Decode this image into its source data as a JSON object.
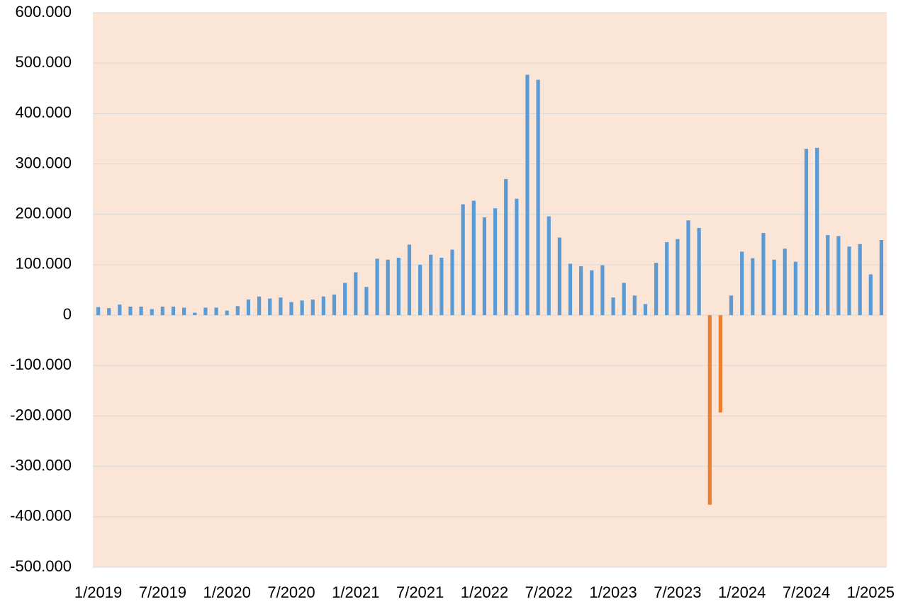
{
  "chart_data": {
    "type": "bar",
    "categories": [
      "1/2019",
      null,
      null,
      null,
      null,
      null,
      "7/2019",
      null,
      null,
      null,
      null,
      null,
      "1/2020",
      null,
      null,
      null,
      null,
      null,
      "7/2020",
      null,
      null,
      null,
      null,
      null,
      "1/2021",
      null,
      null,
      null,
      null,
      null,
      "7/2021",
      null,
      null,
      null,
      null,
      null,
      "1/2022",
      null,
      null,
      null,
      null,
      null,
      "7/2022",
      null,
      null,
      null,
      null,
      null,
      "1/2023",
      null,
      null,
      null,
      null,
      null,
      "7/2023",
      null,
      null,
      null,
      null,
      null,
      "1/2024",
      null,
      null,
      null,
      null,
      null,
      "7/2024",
      null,
      null,
      null,
      null,
      null,
      "1/2025",
      null
    ],
    "values": [
      16000,
      14000,
      21000,
      17000,
      17000,
      12000,
      17000,
      17000,
      15000,
      5000,
      15000,
      15000,
      9000,
      18000,
      31000,
      37000,
      33000,
      35000,
      26000,
      29000,
      31000,
      37000,
      41000,
      64000,
      85000,
      56000,
      112000,
      110000,
      114000,
      140000,
      100000,
      120000,
      114000,
      130000,
      220000,
      227000,
      194000,
      212000,
      270000,
      231000,
      477000,
      467000,
      196000,
      154000,
      102000,
      97000,
      89000,
      99000,
      35000,
      64000,
      39000,
      22000,
      104000,
      145000,
      151000,
      188000,
      173000,
      -376000,
      -193000,
      39000,
      126000,
      113000,
      163000,
      110000,
      132000,
      106000,
      330000,
      332000,
      159000,
      157000,
      136000,
      141000,
      81000,
      149000
    ],
    "color": "#5b9bd5",
    "negative_color": "#ed7d31",
    "ylim": [
      -500000,
      600000
    ],
    "yticks": [
      {
        "value": -500000,
        "label": "-500.000"
      },
      {
        "value": -400000,
        "label": "-400.000"
      },
      {
        "value": -300000,
        "label": "-300.000"
      },
      {
        "value": -200000,
        "label": "-200.000"
      },
      {
        "value": -100000,
        "label": "-100.000"
      },
      0,
      {
        "value": 100000,
        "label": "100.000"
      },
      {
        "value": 200000,
        "label": "200.000"
      },
      {
        "value": 300000,
        "label": "300.000"
      },
      {
        "value": 400000,
        "label": "400.000"
      },
      {
        "value": 500000,
        "label": "500.000"
      },
      {
        "value": 600000,
        "label": "600.000"
      }
    ],
    "grid": true,
    "plot_background": "#fbe5d6"
  }
}
